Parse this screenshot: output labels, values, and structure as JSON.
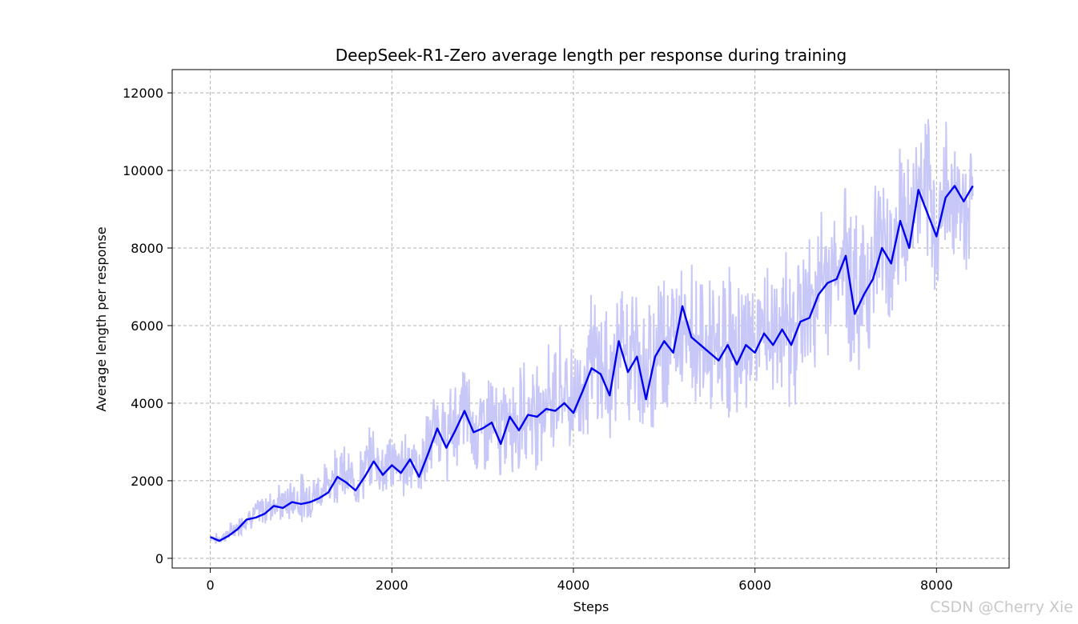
{
  "chart_data": {
    "type": "line",
    "title": "DeepSeek-R1-Zero average length per response during training",
    "xlabel": "Steps",
    "ylabel": "Average length per response",
    "xlim": [
      -420,
      8800
    ],
    "ylim": [
      -250,
      12600
    ],
    "xticks": [
      0,
      2000,
      4000,
      6000,
      8000
    ],
    "yticks": [
      0,
      2000,
      4000,
      6000,
      8000,
      10000,
      12000
    ],
    "grid": true,
    "grid_style": "dashed",
    "colors": {
      "smoothed": "#0000ee",
      "raw": "#c8c8f8"
    },
    "series": [
      {
        "kind": "smoothed",
        "x": [
          0,
          100,
          200,
          300,
          400,
          500,
          600,
          700,
          800,
          900,
          1000,
          1100,
          1200,
          1300,
          1400,
          1500,
          1600,
          1700,
          1800,
          1900,
          2000,
          2100,
          2200,
          2300,
          2400,
          2500,
          2600,
          2700,
          2800,
          2900,
          3000,
          3100,
          3200,
          3300,
          3400,
          3500,
          3600,
          3700,
          3800,
          3900,
          4000,
          4100,
          4200,
          4300,
          4400,
          4500,
          4600,
          4700,
          4800,
          4900,
          5000,
          5100,
          5200,
          5300,
          5400,
          5500,
          5600,
          5700,
          5800,
          5900,
          6000,
          6100,
          6200,
          6300,
          6400,
          6500,
          6600,
          6700,
          6800,
          6900,
          7000,
          7100,
          7200,
          7300,
          7400,
          7500,
          7600,
          7700,
          7800,
          7900,
          8000,
          8100,
          8200,
          8300,
          8400
        ],
        "y": [
          550,
          450,
          580,
          750,
          1000,
          1050,
          1150,
          1350,
          1300,
          1450,
          1400,
          1450,
          1550,
          1700,
          2100,
          1950,
          1750,
          2100,
          2500,
          2150,
          2400,
          2200,
          2550,
          2100,
          2700,
          3350,
          2850,
          3300,
          3800,
          3250,
          3350,
          3500,
          2950,
          3650,
          3300,
          3700,
          3650,
          3850,
          3800,
          4000,
          3750,
          4300,
          4900,
          4750,
          4200,
          5600,
          4800,
          5200,
          4100,
          5200,
          5600,
          5300,
          6500,
          5700,
          5500,
          5300,
          5100,
          5500,
          5000,
          5500,
          5300,
          5800,
          5500,
          5900,
          5500,
          6100,
          6200,
          6800,
          7100,
          7200,
          7800,
          6300,
          6800,
          7200,
          8000,
          7600,
          8700,
          8000,
          9500,
          8900,
          8300,
          9300,
          9600,
          9200,
          9600
        ]
      },
      {
        "kind": "raw",
        "x": [
          0,
          100,
          200,
          300,
          400,
          500,
          600,
          700,
          800,
          900,
          1000,
          1100,
          1200,
          1300,
          1400,
          1500,
          1600,
          1700,
          1800,
          1900,
          2000,
          2100,
          2200,
          2300,
          2400,
          2500,
          2600,
          2700,
          2800,
          2900,
          3000,
          3100,
          3200,
          3300,
          3400,
          3500,
          3600,
          3700,
          3800,
          3900,
          4000,
          4100,
          4200,
          4300,
          4400,
          4500,
          4600,
          4700,
          4800,
          4900,
          5000,
          5100,
          5200,
          5300,
          5400,
          5500,
          5600,
          5700,
          5800,
          5900,
          6000,
          6100,
          6200,
          6300,
          6400,
          6500,
          6600,
          6700,
          6800,
          6900,
          7000,
          7100,
          7200,
          7300,
          7400,
          7500,
          7600,
          7700,
          7800,
          7900,
          8000,
          8100,
          8200,
          8300,
          8400
        ],
        "upper": [
          700,
          650,
          900,
          1100,
          1400,
          1600,
          1800,
          2100,
          1900,
          2200,
          2300,
          2200,
          2500,
          2700,
          3300,
          2900,
          2700,
          3100,
          3700,
          3200,
          3500,
          3300,
          3700,
          3200,
          4000,
          4700,
          4300,
          4800,
          5400,
          4700,
          4800,
          5100,
          4600,
          5300,
          5000,
          5600,
          5500,
          5800,
          6000,
          6200,
          5900,
          6500,
          7000,
          6900,
          6500,
          7600,
          7000,
          7600,
          6500,
          7500,
          8200,
          7700,
          8300,
          8000,
          7700,
          7500,
          7300,
          7800,
          7400,
          7800,
          7600,
          8000,
          7900,
          8200,
          7900,
          8500,
          8600,
          9200,
          9400,
          9600,
          10400,
          9000,
          9500,
          10000,
          10800,
          10400,
          11400,
          10900,
          12000,
          11500,
          11000,
          11500,
          11800,
          11300,
          11400
        ],
        "lower": [
          400,
          300,
          400,
          500,
          700,
          700,
          700,
          900,
          800,
          900,
          800,
          900,
          1000,
          1100,
          1400,
          1300,
          1200,
          1400,
          1700,
          1400,
          1500,
          1400,
          1600,
          1300,
          1700,
          2200,
          1800,
          2100,
          2400,
          1900,
          2000,
          2100,
          1600,
          2200,
          1900,
          2200,
          2200,
          2400,
          2300,
          2500,
          2200,
          2700,
          3200,
          3000,
          2500,
          3600,
          2900,
          3300,
          2300,
          3300,
          3600,
          3300,
          4500,
          3700,
          3500,
          3300,
          3100,
          3500,
          3100,
          3500,
          3300,
          3800,
          3500,
          3900,
          3500,
          4100,
          4200,
          4700,
          5000,
          5100,
          5500,
          4300,
          4700,
          5100,
          5800,
          5400,
          6400,
          5800,
          7100,
          6600,
          6000,
          7000,
          7300,
          6900,
          7300
        ]
      }
    ],
    "watermark": "CSDN @Cherry Xie"
  }
}
